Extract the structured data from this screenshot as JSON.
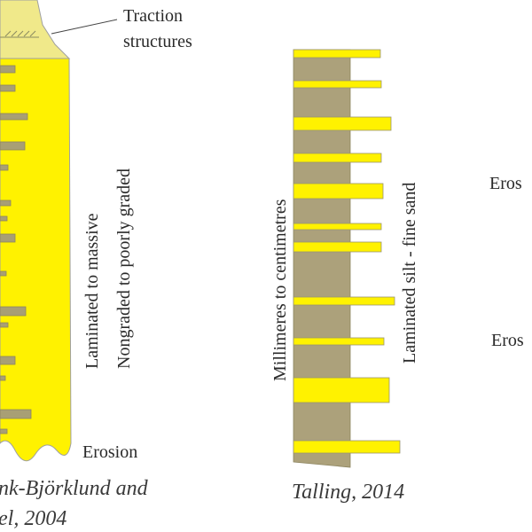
{
  "left_column": {
    "label_traction": [
      "Traction",
      "structures"
    ],
    "label_vertical": [
      "Laminated to massive",
      "Nongraded to poorly graded"
    ],
    "label_erosion": "Erosion",
    "caption": [
      "nk-Björklund and",
      "el, 2004"
    ],
    "colors": {
      "sand": "#fff200",
      "mud": "#a89f75",
      "cap": "#f0e98a",
      "outline": "#999999"
    }
  },
  "middle_column": {
    "label_vertical_left": "Millimeres to centimetres",
    "label_vertical_right": "Laminated silt -  fine sand",
    "caption": "Talling, 2014",
    "colors": {
      "mud": "#aca17b",
      "sand": "#fff200"
    }
  },
  "right_column": {
    "labels": [
      "Eros",
      "Eros"
    ]
  }
}
